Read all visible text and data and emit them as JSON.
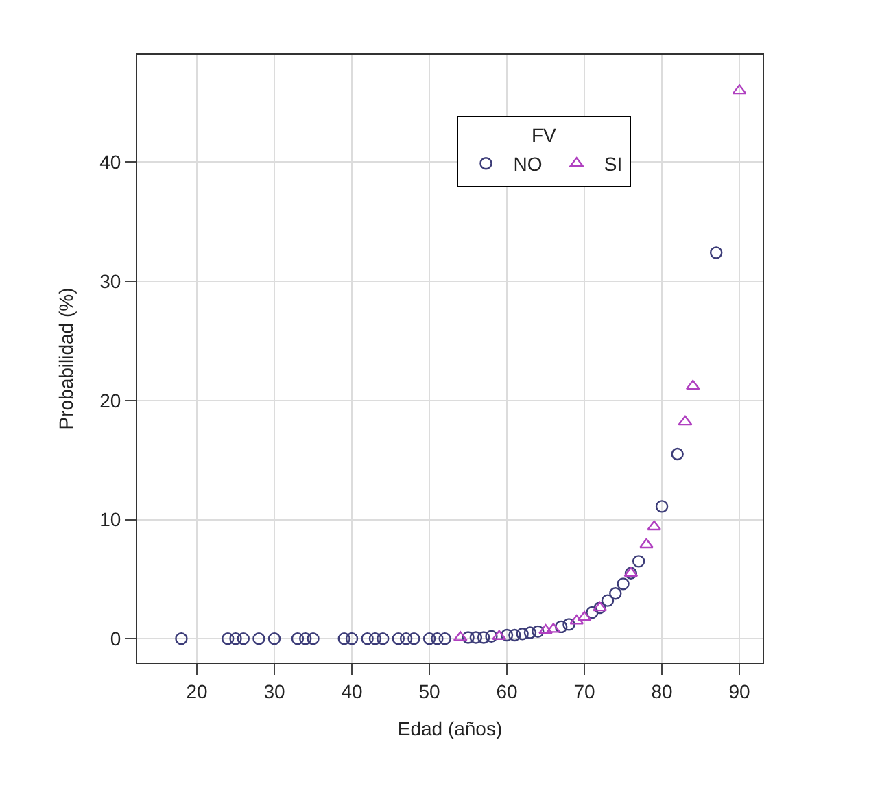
{
  "chart_data": {
    "type": "scatter",
    "xlabel": "Edad (años)",
    "ylabel": "Probabilidad (%)",
    "legend_title": "FV",
    "series": [
      {
        "name": "NO",
        "color": "#3c3c78",
        "marker": "circle",
        "x": [
          18,
          24,
          25,
          26,
          28,
          30,
          33,
          34,
          35,
          39,
          40,
          42,
          43,
          44,
          46,
          47,
          48,
          50,
          51,
          52,
          55,
          56,
          57,
          58,
          60,
          61,
          62,
          63,
          64,
          67,
          68,
          71,
          72,
          73,
          74,
          75,
          76,
          77,
          80,
          82,
          87
        ],
        "values": [
          0,
          0,
          0,
          0,
          0,
          0,
          0,
          0,
          0,
          0,
          0,
          0,
          0,
          0,
          0,
          0,
          0,
          0,
          0,
          0,
          0.1,
          0.1,
          0.1,
          0.2,
          0.3,
          0.3,
          0.4,
          0.5,
          0.6,
          1.0,
          1.2,
          2.2,
          2.6,
          3.2,
          3.8,
          4.6,
          5.5,
          6.5,
          11.1,
          15.5,
          32.4
        ]
      },
      {
        "name": "SI",
        "color": "#b040c0",
        "marker": "triangle",
        "x": [
          54,
          59,
          65,
          66,
          69,
          70,
          72,
          76,
          78,
          79,
          83,
          84,
          90
        ],
        "values": [
          0.1,
          0.2,
          0.7,
          0.8,
          1.5,
          1.8,
          2.6,
          5.5,
          7.9,
          9.4,
          18.2,
          21.2,
          46.0
        ]
      }
    ],
    "xlim": [
      12.3,
      93
    ],
    "xticks": [
      20,
      30,
      40,
      50,
      60,
      70,
      80,
      90
    ],
    "ylim": [
      -2,
      49
    ],
    "yticks": [
      0,
      10,
      20,
      30,
      40
    ],
    "grid": true,
    "legend": "top right"
  }
}
